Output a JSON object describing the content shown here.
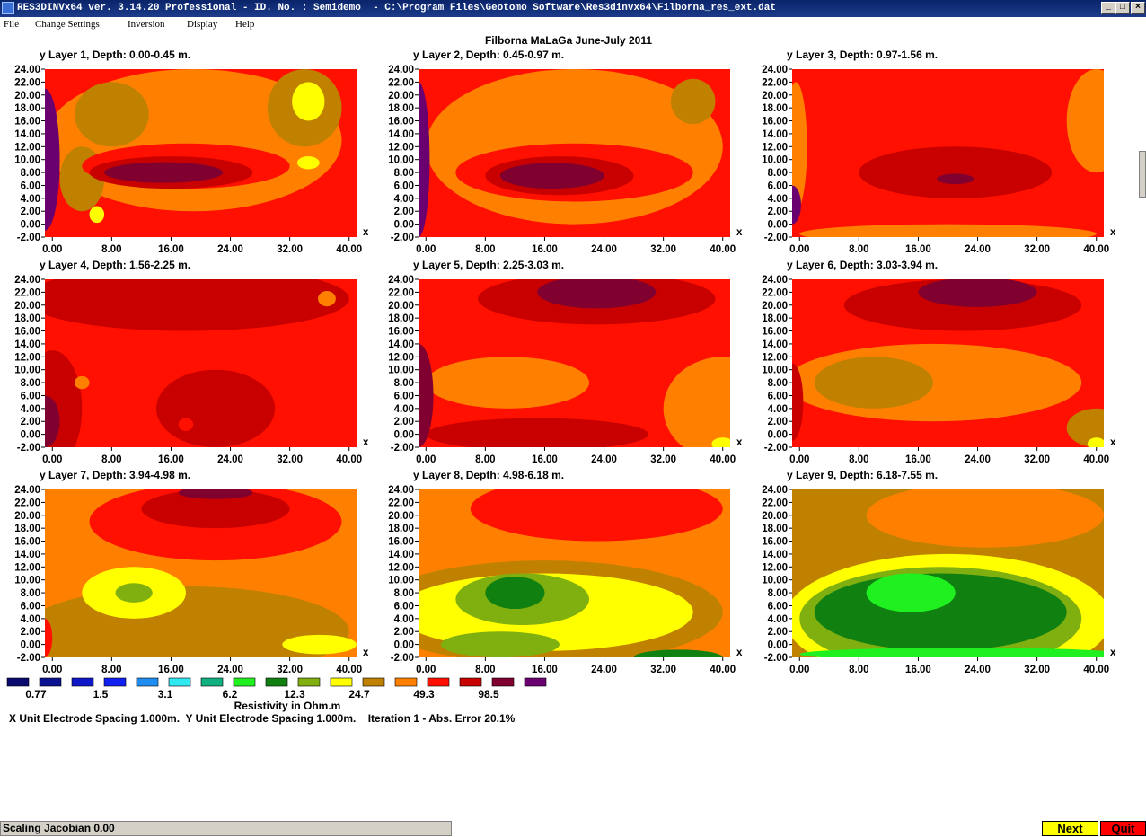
{
  "window": {
    "title": "RES3DINVx64 ver. 3.14.20 Professional - ID. No. : Semidemo  - C:\\Program Files\\Geotomo Software\\Res3dinvx64\\Filborna_res_ext.dat",
    "minimize_label": "_",
    "maximize_label": "□",
    "close_label": "×"
  },
  "menu": {
    "items": [
      "File",
      "Change Settings",
      "Inversion",
      "Display",
      "Help"
    ]
  },
  "main_title": "Filborna MaLaGa June-July 2011",
  "axes": {
    "y_ticks": [
      "24.00",
      "22.00",
      "20.00",
      "18.00",
      "16.00",
      "14.00",
      "12.00",
      "10.00",
      "8.00",
      "6.00",
      "4.00",
      "2.00",
      "0.00",
      "-2.00"
    ],
    "x_ticks": [
      "0.00",
      "8.00",
      "16.00",
      "24.00",
      "32.00",
      "40.00"
    ],
    "x_label": "x"
  },
  "colors": {
    "palette": [
      "#0a0a6e",
      "#0b128f",
      "#0f18c8",
      "#1020f0",
      "#1e8cf0",
      "#30e8f0",
      "#10b080",
      "#20f020",
      "#108010",
      "#80b010",
      "#ffff00",
      "#c08000",
      "#ff8000",
      "#ff1000",
      "#c80000",
      "#800030",
      "#6a0070"
    ],
    "classes": {
      "dkpurple": "#6a0070",
      "plum": "#800030",
      "darkred": "#c80000",
      "red": "#ff1000",
      "orange": "#ff8000",
      "ochre": "#c08000",
      "yellow": "#ffff00",
      "yellowgreen": "#80b010",
      "dkgreen": "#108010",
      "bgreen": "#20f020"
    }
  },
  "layers": [
    {
      "label": "y Layer 1, Depth: 0.00-0.45 m.",
      "background": "red",
      "regions": [
        {
          "c": "orange",
          "cx": 19,
          "cy": 13,
          "rx": 20,
          "ry": 11
        },
        {
          "c": "ochre",
          "cx": 34,
          "cy": 18,
          "rx": 5,
          "ry": 6
        },
        {
          "c": "ochre",
          "cx": 8,
          "cy": 17,
          "rx": 5,
          "ry": 5
        },
        {
          "c": "ochre",
          "cx": 4,
          "cy": 7,
          "rx": 3,
          "ry": 5
        },
        {
          "c": "red",
          "cx": 18,
          "cy": 9,
          "rx": 14,
          "ry": 3.5
        },
        {
          "c": "darkred",
          "cx": 16,
          "cy": 8,
          "rx": 11,
          "ry": 2.5
        },
        {
          "c": "plum",
          "cx": 15,
          "cy": 8,
          "rx": 8,
          "ry": 1.6
        },
        {
          "c": "dkpurple",
          "cx": -1,
          "cy": 10,
          "rx": 2,
          "ry": 11
        },
        {
          "c": "yellow",
          "cx": 34.5,
          "cy": 19,
          "rx": 2.2,
          "ry": 3
        },
        {
          "c": "yellow",
          "cx": 34.5,
          "cy": 9.5,
          "rx": 1.5,
          "ry": 1
        },
        {
          "c": "yellow",
          "cx": 6,
          "cy": 1.5,
          "rx": 1,
          "ry": 1.3
        }
      ]
    },
    {
      "label": "y Layer 2, Depth: 0.45-0.97 m.",
      "background": "red",
      "regions": [
        {
          "c": "orange",
          "cx": 20,
          "cy": 12,
          "rx": 20,
          "ry": 12
        },
        {
          "c": "ochre",
          "cx": 36,
          "cy": 19,
          "rx": 3,
          "ry": 3.5
        },
        {
          "c": "red",
          "cx": 20,
          "cy": 8,
          "rx": 16,
          "ry": 4.5
        },
        {
          "c": "darkred",
          "cx": 18,
          "cy": 7.5,
          "rx": 10,
          "ry": 3
        },
        {
          "c": "plum",
          "cx": 17,
          "cy": 7.5,
          "rx": 7,
          "ry": 2
        },
        {
          "c": "dkpurple",
          "cx": -1,
          "cy": 10,
          "rx": 1.5,
          "ry": 12
        }
      ]
    },
    {
      "label": "y Layer 3, Depth: 0.97-1.56 m.",
      "background": "red",
      "regions": [
        {
          "c": "orange",
          "cx": 40,
          "cy": 16,
          "rx": 4,
          "ry": 8
        },
        {
          "c": "orange",
          "cx": 20,
          "cy": -1.5,
          "rx": 20,
          "ry": 1.5
        },
        {
          "c": "orange",
          "cx": -0.5,
          "cy": 12,
          "rx": 1.5,
          "ry": 10
        },
        {
          "c": "darkred",
          "cx": 21,
          "cy": 8,
          "rx": 13,
          "ry": 4
        },
        {
          "c": "plum",
          "cx": 21,
          "cy": 7,
          "rx": 2.5,
          "ry": 0.8
        },
        {
          "c": "dkpurple",
          "cx": -1,
          "cy": 3,
          "rx": 1.2,
          "ry": 3
        }
      ]
    },
    {
      "label": "y Layer 4, Depth: 1.56-2.25 m.",
      "background": "red",
      "regions": [
        {
          "c": "darkred",
          "cx": 18,
          "cy": 21,
          "rx": 22,
          "ry": 5
        },
        {
          "c": "darkred",
          "cx": 22,
          "cy": 4,
          "rx": 8,
          "ry": 6
        },
        {
          "c": "darkred",
          "cx": 0,
          "cy": 4,
          "rx": 4,
          "ry": 9
        },
        {
          "c": "plum",
          "cx": -1,
          "cy": 2,
          "rx": 2,
          "ry": 4
        },
        {
          "c": "orange",
          "cx": 37,
          "cy": 21,
          "rx": 1.2,
          "ry": 1.2
        },
        {
          "c": "orange",
          "cx": 4,
          "cy": 8,
          "rx": 1,
          "ry": 1
        },
        {
          "c": "red",
          "cx": 18,
          "cy": 1.5,
          "rx": 1,
          "ry": 1
        }
      ]
    },
    {
      "label": "y Layer 5, Depth: 2.25-3.03 m.",
      "background": "red",
      "regions": [
        {
          "c": "darkred",
          "cx": 23,
          "cy": 21,
          "rx": 16,
          "ry": 4
        },
        {
          "c": "plum",
          "cx": 23,
          "cy": 22,
          "rx": 8,
          "ry": 2.5
        },
        {
          "c": "orange",
          "cx": 11,
          "cy": 8,
          "rx": 11,
          "ry": 4
        },
        {
          "c": "orange",
          "cx": 40,
          "cy": 4,
          "rx": 8,
          "ry": 8
        },
        {
          "c": "darkred",
          "cx": 15,
          "cy": 0,
          "rx": 15,
          "ry": 2.5
        },
        {
          "c": "plum",
          "cx": -1,
          "cy": 6,
          "rx": 2,
          "ry": 8
        },
        {
          "c": "yellow",
          "cx": 40,
          "cy": -1.5,
          "rx": 1.5,
          "ry": 1
        }
      ]
    },
    {
      "label": "y Layer 6, Depth: 3.03-3.94 m.",
      "background": "red",
      "regions": [
        {
          "c": "darkred",
          "cx": 22,
          "cy": 20,
          "rx": 16,
          "ry": 4
        },
        {
          "c": "plum",
          "cx": 24,
          "cy": 22,
          "rx": 8,
          "ry": 2.3
        },
        {
          "c": "orange",
          "cx": 18,
          "cy": 8,
          "rx": 20,
          "ry": 6
        },
        {
          "c": "ochre",
          "cx": 10,
          "cy": 8,
          "rx": 8,
          "ry": 4
        },
        {
          "c": "ochre",
          "cx": 40,
          "cy": 1,
          "rx": 4,
          "ry": 3
        },
        {
          "c": "darkred",
          "cx": -1,
          "cy": 5,
          "rx": 1.5,
          "ry": 6
        },
        {
          "c": "yellow",
          "cx": 40,
          "cy": -1.5,
          "rx": 1.2,
          "ry": 1
        }
      ]
    },
    {
      "label": "y Layer 7, Depth: 3.94-4.98 m.",
      "background": "orange",
      "regions": [
        {
          "c": "red",
          "cx": 22,
          "cy": 19,
          "rx": 17,
          "ry": 6
        },
        {
          "c": "darkred",
          "cx": 22,
          "cy": 21,
          "rx": 10,
          "ry": 3
        },
        {
          "c": "plum",
          "cx": 22,
          "cy": 23.5,
          "rx": 5,
          "ry": 1
        },
        {
          "c": "ochre",
          "cx": 18,
          "cy": 2,
          "rx": 22,
          "ry": 7
        },
        {
          "c": "yellow",
          "cx": 11,
          "cy": 8,
          "rx": 7,
          "ry": 4
        },
        {
          "c": "yellowgreen",
          "cx": 11,
          "cy": 8,
          "rx": 2.5,
          "ry": 1.5
        },
        {
          "c": "yellow",
          "cx": 36,
          "cy": 0,
          "rx": 5,
          "ry": 1.5
        },
        {
          "c": "red",
          "cx": -1,
          "cy": 1,
          "rx": 1,
          "ry": 3
        }
      ]
    },
    {
      "label": "y Layer 8, Depth: 4.98-6.18 m.",
      "background": "orange",
      "regions": [
        {
          "c": "red",
          "cx": 23,
          "cy": 21,
          "rx": 17,
          "ry": 5
        },
        {
          "c": "ochre",
          "cx": 16,
          "cy": 5,
          "rx": 24,
          "ry": 8
        },
        {
          "c": "yellow",
          "cx": 16,
          "cy": 5,
          "rx": 20,
          "ry": 6
        },
        {
          "c": "yellowgreen",
          "cx": 13,
          "cy": 7,
          "rx": 9,
          "ry": 4
        },
        {
          "c": "dkgreen",
          "cx": 12,
          "cy": 8,
          "rx": 4,
          "ry": 2.5
        },
        {
          "c": "yellowgreen",
          "cx": 10,
          "cy": 0,
          "rx": 8,
          "ry": 2
        },
        {
          "c": "dkgreen",
          "cx": 34,
          "cy": -2,
          "rx": 6,
          "ry": 1.2
        }
      ]
    },
    {
      "label": "y Layer 9, Depth: 6.18-7.55 m.",
      "background": "ochre",
      "regions": [
        {
          "c": "orange",
          "cx": 25,
          "cy": 20,
          "rx": 16,
          "ry": 5
        },
        {
          "c": "yellow",
          "cx": 20,
          "cy": 4,
          "rx": 22,
          "ry": 10
        },
        {
          "c": "yellowgreen",
          "cx": 19,
          "cy": 4,
          "rx": 19,
          "ry": 8
        },
        {
          "c": "dkgreen",
          "cx": 19,
          "cy": 5,
          "rx": 17,
          "ry": 6
        },
        {
          "c": "bgreen",
          "cx": 15,
          "cy": 8,
          "rx": 6,
          "ry": 3
        },
        {
          "c": "bgreen",
          "cx": 22,
          "cy": -1.5,
          "rx": 22,
          "ry": 1
        }
      ]
    }
  ],
  "legend": {
    "labels": [
      "0.77",
      "1.5",
      "3.1",
      "6.2",
      "12.3",
      "24.7",
      "49.3",
      "98.5"
    ],
    "title": "Resistivity in Ohm.m"
  },
  "footer_info": "X Unit Electrode Spacing 1.000m.  Y Unit Electrode Spacing 1.000m.    Iteration 1 - Abs. Error 20.1%",
  "status": {
    "text": "Scaling Jacobian 0.00",
    "next_label": "Next",
    "quit_label": "Quit"
  }
}
